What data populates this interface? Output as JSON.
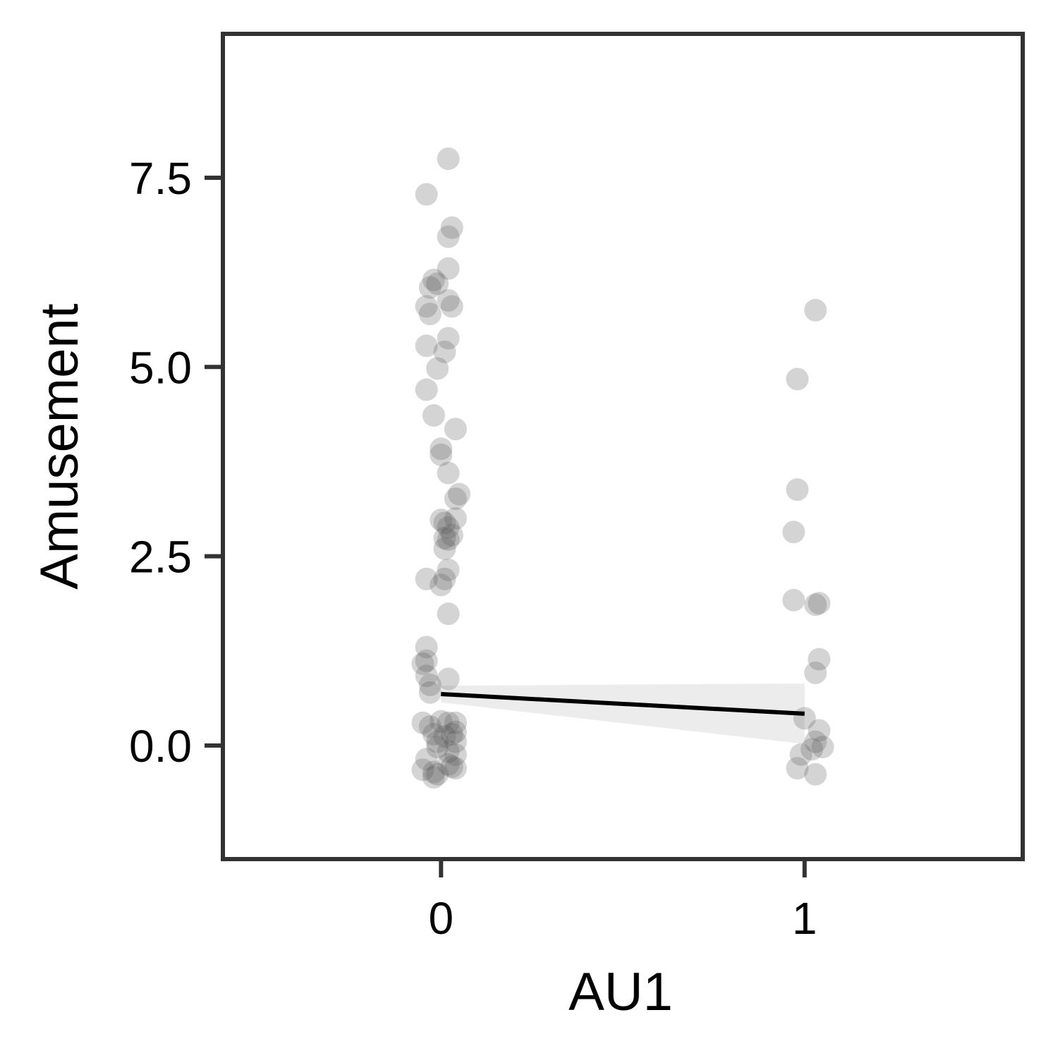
{
  "chart_data": {
    "type": "scatter",
    "title": "",
    "xlabel": "AU1",
    "ylabel": "Amusement",
    "xlim": [
      -0.6,
      1.6
    ],
    "ylim": [
      -1.5,
      9.4
    ],
    "x_ticks": [
      0,
      1
    ],
    "x_tick_labels": [
      "0",
      "1"
    ],
    "y_ticks": [
      0,
      2.5,
      5,
      7.5
    ],
    "y_tick_labels": [
      "0.0",
      "2.5",
      "5.0",
      "7.5"
    ],
    "grid": false,
    "legend": "none",
    "point_color": "#555555",
    "point_opacity": 0.25,
    "line_color": "#000000",
    "band_color": "#d9d9d9",
    "series": [
      {
        "values": [
          [
            0.02,
            7.75
          ],
          [
            -0.04,
            7.28
          ],
          [
            0.03,
            6.84
          ],
          [
            0.02,
            6.72
          ],
          [
            0.02,
            6.3
          ],
          [
            -0.02,
            6.15
          ],
          [
            -0.03,
            6.05
          ],
          [
            -0.01,
            6.1
          ],
          [
            0.02,
            5.88
          ],
          [
            0.03,
            5.8
          ],
          [
            -0.04,
            5.8
          ],
          [
            -0.03,
            5.7
          ],
          [
            0.02,
            5.38
          ],
          [
            -0.04,
            5.28
          ],
          [
            0.01,
            5.2
          ],
          [
            -0.01,
            4.98
          ],
          [
            -0.04,
            4.7
          ],
          [
            -0.02,
            4.36
          ],
          [
            0.04,
            4.18
          ],
          [
            0.0,
            3.92
          ],
          [
            0.0,
            3.84
          ],
          [
            0.02,
            3.6
          ],
          [
            0.05,
            3.32
          ],
          [
            0.04,
            3.26
          ],
          [
            0.04,
            3.0
          ],
          [
            0.01,
            2.94
          ],
          [
            0.0,
            2.98
          ],
          [
            0.02,
            2.88
          ],
          [
            0.03,
            2.78
          ],
          [
            0.01,
            2.74
          ],
          [
            0.02,
            2.72
          ],
          [
            0.01,
            2.6
          ],
          [
            0.02,
            2.32
          ],
          [
            0.01,
            2.2
          ],
          [
            -0.04,
            2.2
          ],
          [
            0.0,
            2.12
          ],
          [
            0.02,
            1.74
          ],
          [
            -0.04,
            1.3
          ],
          [
            -0.04,
            1.12
          ],
          [
            -0.05,
            1.08
          ],
          [
            -0.04,
            0.92
          ],
          [
            0.02,
            0.88
          ],
          [
            -0.03,
            0.8
          ],
          [
            -0.03,
            0.7
          ],
          [
            -0.05,
            0.3
          ],
          [
            -0.03,
            0.25
          ],
          [
            0.0,
            0.32
          ],
          [
            0.02,
            0.3
          ],
          [
            0.04,
            0.3
          ],
          [
            -0.02,
            0.15
          ],
          [
            0.01,
            0.12
          ],
          [
            0.03,
            0.15
          ],
          [
            0.04,
            0.18
          ],
          [
            -0.01,
            0.05
          ],
          [
            0.04,
            0.05
          ],
          [
            -0.01,
            -0.02
          ],
          [
            0.02,
            -0.08
          ],
          [
            0.04,
            -0.12
          ],
          [
            -0.04,
            -0.18
          ],
          [
            0.02,
            -0.25
          ],
          [
            0.03,
            -0.28
          ],
          [
            0.04,
            -0.3
          ],
          [
            -0.05,
            -0.32
          ],
          [
            -0.02,
            -0.35
          ],
          [
            -0.02,
            -0.42
          ],
          [
            -0.01,
            -0.38
          ]
        ]
      },
      {
        "values": [
          [
            1.03,
            5.75
          ],
          [
            0.98,
            4.84
          ],
          [
            0.98,
            3.38
          ],
          [
            0.97,
            2.82
          ],
          [
            0.97,
            1.92
          ],
          [
            1.03,
            1.86
          ],
          [
            1.04,
            1.88
          ],
          [
            1.04,
            1.14
          ],
          [
            1.03,
            0.96
          ],
          [
            1.0,
            0.36
          ],
          [
            1.04,
            0.2
          ],
          [
            1.03,
            0.05
          ],
          [
            1.05,
            -0.02
          ],
          [
            1.02,
            -0.05
          ],
          [
            0.99,
            -0.12
          ],
          [
            0.98,
            -0.3
          ],
          [
            1.03,
            -0.38
          ]
        ]
      }
    ],
    "fit_line": {
      "x": [
        0,
        1
      ],
      "y": [
        0.68,
        0.42
      ]
    },
    "confidence_band": {
      "x": [
        0,
        1
      ],
      "lower": [
        0.57,
        0.02
      ],
      "upper": [
        0.79,
        0.82
      ]
    }
  }
}
